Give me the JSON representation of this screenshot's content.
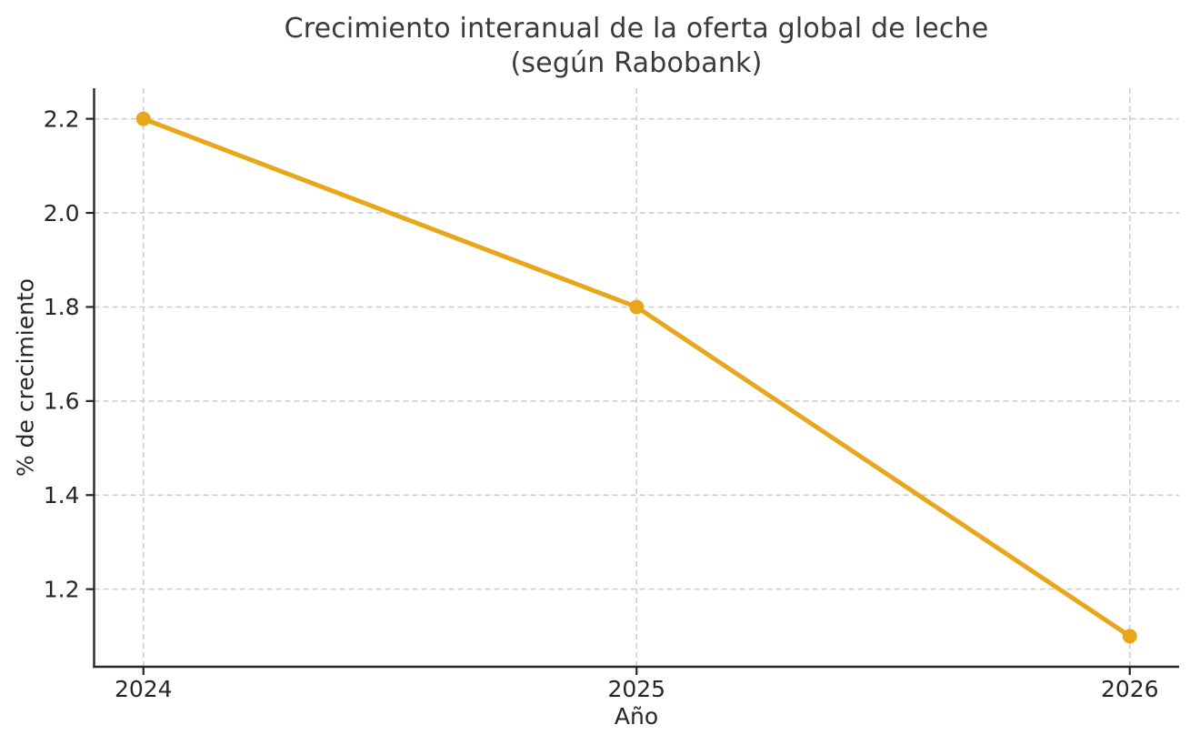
{
  "chart_data": {
    "type": "line",
    "title": "Crecimiento interanual de la oferta global de leche (según Rabobank)",
    "title_line1": "Crecimiento interanual de la oferta global de leche",
    "title_line2": "(según Rabobank)",
    "xlabel": "Año",
    "ylabel": "% de crecimiento",
    "x": [
      2024,
      2025,
      2026
    ],
    "values": [
      2.2,
      1.8,
      1.1
    ],
    "xticks": [
      2024,
      2025,
      2026
    ],
    "xtick_labels": [
      "2024",
      "2025",
      "2026"
    ],
    "yticks": [
      1.2,
      1.4,
      1.6,
      1.8,
      2.0,
      2.2
    ],
    "ytick_labels": [
      "1.2",
      "1.4",
      "1.6",
      "1.8",
      "2.0",
      "2.2"
    ],
    "xlim": [
      2023.9,
      2026.1
    ],
    "ylim": [
      1.035,
      2.265
    ],
    "grid": true,
    "legend": "none",
    "colors": {
      "line": "#e8a71a",
      "marker": "#e8a71a",
      "grid": "#cccccc",
      "spine": "#262626",
      "tick_text": "#262626",
      "title_text": "#3a3a3a"
    }
  }
}
